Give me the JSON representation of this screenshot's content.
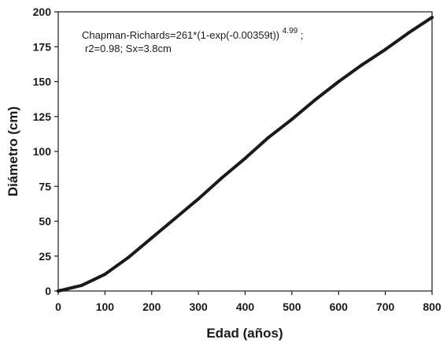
{
  "chart_data": {
    "type": "line",
    "xlabel": "Edad (años)",
    "ylabel": "Diámetro (cm)",
    "xlim": [
      0,
      800
    ],
    "ylim": [
      0,
      200
    ],
    "xticks": [
      "0",
      "100",
      "200",
      "300",
      "400",
      "500",
      "600",
      "700",
      "800"
    ],
    "yticks": [
      "0",
      "25",
      "50",
      "75",
      "100",
      "125",
      "150",
      "175",
      "200"
    ],
    "grid": false,
    "series": [
      {
        "x": [
          0,
          50,
          100,
          150,
          200,
          250,
          300,
          350,
          400,
          450,
          500,
          550,
          600,
          650,
          700,
          750,
          800
        ],
        "values": [
          0,
          4,
          12,
          24,
          38,
          52,
          66,
          81,
          95,
          110,
          123,
          137,
          150,
          162,
          173,
          185,
          196
        ]
      }
    ],
    "annotation": {
      "line1_main": "Chapman-Richards=261*(1-exp(-0.00359t))",
      "line1_exponent": "4.99",
      "line1_suffix": ";",
      "line2": "r2=0.98; Sx=3.8cm"
    },
    "colors": {
      "line": "#1a1a1a",
      "axis": "#1a1a1a",
      "background": "#ffffff"
    }
  }
}
